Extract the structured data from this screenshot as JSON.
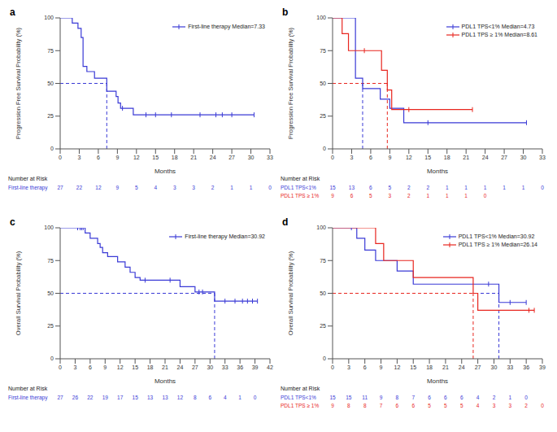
{
  "chart_data": [
    {
      "type": "line",
      "label": "a",
      "x_label": "Months",
      "y_label": "Progression Free Survival Probability (%)",
      "xlim": [
        0,
        33
      ],
      "xticks": [
        0,
        3,
        6,
        9,
        12,
        15,
        18,
        21,
        24,
        27,
        30,
        33
      ],
      "ylim": [
        0,
        100
      ],
      "yticks": [
        0,
        25,
        50,
        75,
        100
      ],
      "line_style": "step",
      "median_level": 50,
      "risk_title": "Number at Risk",
      "series": [
        {
          "name": "First-line therapy Median=7.33",
          "risk_label": "First-line therapy",
          "color": "#3a3ad6",
          "median": 7.33,
          "x": [
            0,
            1.9,
            2.8,
            3.3,
            3.6,
            4.2,
            5.4,
            7.33,
            8.8,
            9.1,
            9.5,
            11.5,
            30.5
          ],
          "values": [
            100,
            96,
            92,
            85,
            63,
            59,
            54,
            44,
            40,
            35,
            31,
            26,
            26
          ],
          "censored": [
            9.8,
            13.5,
            15,
            17.5,
            22,
            24.5,
            25.5,
            27,
            30.5
          ],
          "at_risk": [
            27,
            22,
            12,
            9,
            5,
            4,
            3,
            3,
            2,
            1,
            1,
            0
          ]
        }
      ]
    },
    {
      "type": "line",
      "label": "b",
      "x_label": "Months",
      "y_label": "Progression Free Survival Probability (%)",
      "xlim": [
        0,
        33
      ],
      "xticks": [
        0,
        3,
        6,
        9,
        12,
        15,
        18,
        21,
        24,
        27,
        30,
        33
      ],
      "ylim": [
        0,
        100
      ],
      "yticks": [
        0,
        25,
        50,
        75,
        100
      ],
      "line_style": "step",
      "median_level": 50,
      "risk_title": "Number at Risk",
      "series": [
        {
          "name": "PDL1 TPS<1% Median=4.73",
          "risk_label": "PDL1 TPS<1%",
          "color": "#3a3ad6",
          "median": 4.73,
          "x": [
            0,
            3.6,
            4.73,
            7.5,
            9,
            11.2,
            30.5
          ],
          "values": [
            100,
            54,
            46,
            38,
            31,
            20,
            20
          ],
          "censored": [
            15,
            30.5
          ],
          "at_risk": [
            15,
            13,
            6,
            5,
            2,
            2,
            1,
            1,
            1,
            1,
            1,
            0
          ]
        },
        {
          "name": "PDL1 TPS ≥ 1% Median=8.61",
          "risk_label": "PDL1 TPS ≥ 1%",
          "color": "#e8261f",
          "median": 8.61,
          "x": [
            0,
            1.5,
            2.5,
            7.7,
            8.61,
            9.3,
            22
          ],
          "values": [
            100,
            88,
            75,
            60,
            45,
            30,
            30
          ],
          "censored": [
            5,
            12,
            22
          ],
          "at_risk": [
            9,
            6,
            5,
            3,
            2,
            1,
            1,
            1,
            0
          ]
        }
      ]
    },
    {
      "type": "line",
      "label": "c",
      "x_label": "Months",
      "y_label": "Overall Survival Probability (%)",
      "xlim": [
        0,
        42
      ],
      "xticks": [
        0,
        3,
        6,
        9,
        12,
        15,
        18,
        21,
        24,
        27,
        30,
        33,
        36,
        39,
        42
      ],
      "ylim": [
        0,
        100
      ],
      "yticks": [
        0,
        25,
        50,
        75,
        100
      ],
      "line_style": "step",
      "median_level": 50,
      "risk_title": "Number at Risk",
      "series": [
        {
          "name": "First-line therapy Median=30.92",
          "risk_label": "First-line therapy",
          "color": "#3a3ad6",
          "median": 30.92,
          "x": [
            0,
            5,
            6,
            7.5,
            8,
            8.5,
            9.5,
            11.5,
            13,
            14,
            15,
            16,
            24,
            27,
            30.92,
            39.5
          ],
          "values": [
            100,
            96,
            92,
            88,
            85,
            81,
            78,
            74,
            70,
            66,
            62,
            60,
            55,
            51,
            44,
            44
          ],
          "censored": [
            3.5,
            4,
            4.3,
            4.6,
            17,
            22,
            27.8,
            28.5,
            33,
            35,
            36.5,
            37.5,
            38.5,
            39.5
          ],
          "at_risk": [
            27,
            26,
            22,
            19,
            17,
            15,
            13,
            13,
            12,
            8,
            6,
            4,
            1,
            0
          ]
        }
      ]
    },
    {
      "type": "line",
      "label": "d",
      "x_label": "Months",
      "y_label": "Overall Survival Probability (%)",
      "xlim": [
        0,
        39
      ],
      "xticks": [
        0,
        3,
        6,
        9,
        12,
        15,
        18,
        21,
        24,
        27,
        30,
        33,
        36,
        39
      ],
      "ylim": [
        0,
        100
      ],
      "yticks": [
        0,
        25,
        50,
        75,
        100
      ],
      "line_style": "step",
      "median_level": 50,
      "risk_title": "Number at Risk",
      "series": [
        {
          "name": "PDL1 TPS<1% Median=30.92",
          "risk_label": "PDL1 TPS<1%",
          "color": "#3a3ad6",
          "median": 30.92,
          "x": [
            0,
            4.5,
            6,
            8,
            12,
            15,
            30.92,
            36
          ],
          "values": [
            100,
            92,
            83,
            75,
            67,
            57,
            43,
            43
          ],
          "censored": [
            3.5,
            29,
            33,
            36
          ],
          "at_risk": [
            15,
            15,
            11,
            9,
            8,
            7,
            6,
            6,
            6,
            4,
            2,
            1,
            0
          ]
        },
        {
          "name": "PDL1 TPS ≥ 1% Median=26.14",
          "risk_label": "PDL1 TPS ≥ 1%",
          "color": "#e8261f",
          "median": 26.14,
          "x": [
            0,
            8,
            9.5,
            15,
            26.14,
            27,
            37.5
          ],
          "values": [
            100,
            88,
            75,
            62,
            50,
            37,
            37
          ],
          "censored": [
            36.5,
            37.5
          ],
          "at_risk": [
            9,
            8,
            8,
            7,
            6,
            6,
            5,
            5,
            5,
            4,
            3,
            3,
            2,
            0
          ]
        }
      ]
    }
  ]
}
